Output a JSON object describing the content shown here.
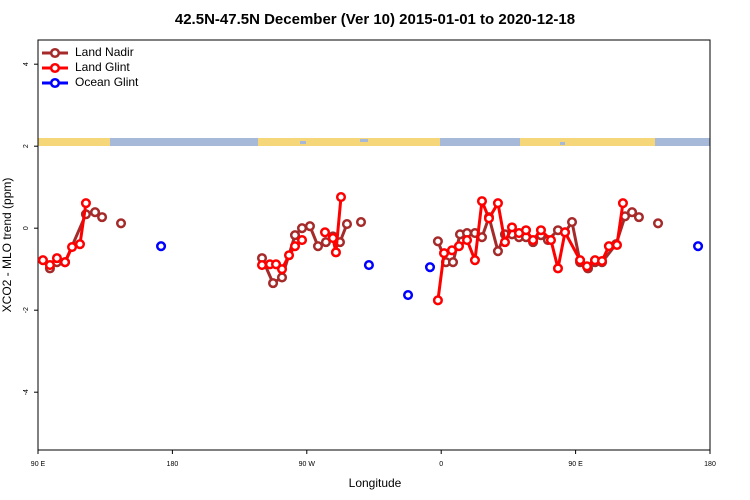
{
  "chart_data": {
    "type": "line",
    "title": "42.5N-47.5N December (Ver 10)   2015-01-01 to 2020-12-18",
    "x_label": "Longitude",
    "y_label": "XCO2 - MLO trend (ppm)",
    "xlim": [
      90,
      540
    ],
    "ylim": [
      -5.41,
      4.59
    ],
    "xticks": [
      {
        "value": 90,
        "label": "90 E"
      },
      {
        "value": 180,
        "label": "180"
      },
      {
        "value": 270,
        "label": "90 W"
      },
      {
        "value": 360,
        "label": "0"
      },
      {
        "value": 450,
        "label": "90 E"
      },
      {
        "value": 540,
        "label": "180"
      }
    ],
    "yticks": [
      -4,
      -2,
      0,
      2,
      4
    ],
    "legend": "top-left",
    "series": [
      {
        "name": "Land Nadir",
        "color": "#a52a2a",
        "x": [
          98.0,
          102.7,
          108.1,
          122.1,
          128.2,
          132.9,
          null,
          145.6,
          null,
          240.0,
          247.4,
          253.4,
          262.1,
          266.8,
          272.1,
          277.5,
          282.8,
          287.5,
          292.2,
          296.9,
          null,
          306.3,
          null,
          357.8,
          363.2,
          367.9,
          372.6,
          377.3,
          382.6,
          387.3,
          392.0,
          398.0,
          402.7,
          407.4,
          412.1,
          416.8,
          421.5,
          426.8,
          431.5,
          438.2,
          442.9,
          447.6,
          453.0,
          458.3,
          463.0,
          467.7,
          477.1,
          483.1,
          487.8,
          492.4,
          null,
          505.2
        ],
        "values": [
          -0.98,
          -0.83,
          -0.83,
          0.34,
          0.39,
          0.27,
          null,
          0.12,
          null,
          -0.73,
          -1.34,
          -1.2,
          -0.17,
          0.0,
          0.05,
          -0.44,
          -0.34,
          -0.2,
          -0.34,
          0.1,
          null,
          0.15,
          null,
          -0.32,
          -0.83,
          -0.83,
          -0.15,
          -0.12,
          -0.12,
          -0.22,
          0.27,
          -0.56,
          -0.15,
          -0.15,
          -0.22,
          -0.22,
          -0.34,
          -0.17,
          -0.29,
          -0.05,
          -0.1,
          0.15,
          -0.83,
          -0.98,
          -0.83,
          -0.83,
          -0.39,
          0.29,
          0.39,
          0.27,
          null,
          0.12
        ]
      },
      {
        "name": "Land Glint",
        "color": "#ff0000",
        "x": [
          93.3,
          98.0,
          102.7,
          108.1,
          112.8,
          118.1,
          122.1,
          null,
          240.0,
          245.3,
          249.4,
          253.4,
          258.1,
          262.1,
          266.8,
          null,
          282.2,
          287.5,
          289.5,
          292.9,
          null,
          357.8,
          361.9,
          367.2,
          371.9,
          377.3,
          382.6,
          387.3,
          392.0,
          398.0,
          402.7,
          407.4,
          412.1,
          416.8,
          421.5,
          426.8,
          433.5,
          438.2,
          442.9,
          453.0,
          457.6,
          463.0,
          467.7,
          472.3,
          477.7,
          481.7
        ],
        "values": [
          -0.78,
          -0.9,
          -0.73,
          -0.83,
          -0.46,
          -0.39,
          0.61,
          null,
          -0.9,
          -0.88,
          -0.88,
          -1.0,
          -0.66,
          -0.44,
          -0.29,
          null,
          -0.1,
          -0.24,
          -0.59,
          0.76,
          null,
          -1.76,
          -0.61,
          -0.54,
          -0.44,
          -0.29,
          -0.78,
          0.66,
          0.24,
          0.61,
          -0.34,
          0.02,
          -0.12,
          -0.05,
          -0.29,
          -0.05,
          -0.29,
          -0.98,
          -0.1,
          -0.78,
          -0.93,
          -0.78,
          -0.8,
          -0.44,
          -0.41,
          0.61
        ]
      },
      {
        "name": "Ocean Glint",
        "color": "#0000ff",
        "x": [
          172.4,
          null,
          311.6,
          null,
          337.8,
          null,
          352.5,
          null,
          532.0
        ],
        "values": [
          -0.44,
          null,
          -0.9,
          null,
          -1.63,
          null,
          -0.95,
          null,
          -0.44
        ]
      }
    ]
  }
}
